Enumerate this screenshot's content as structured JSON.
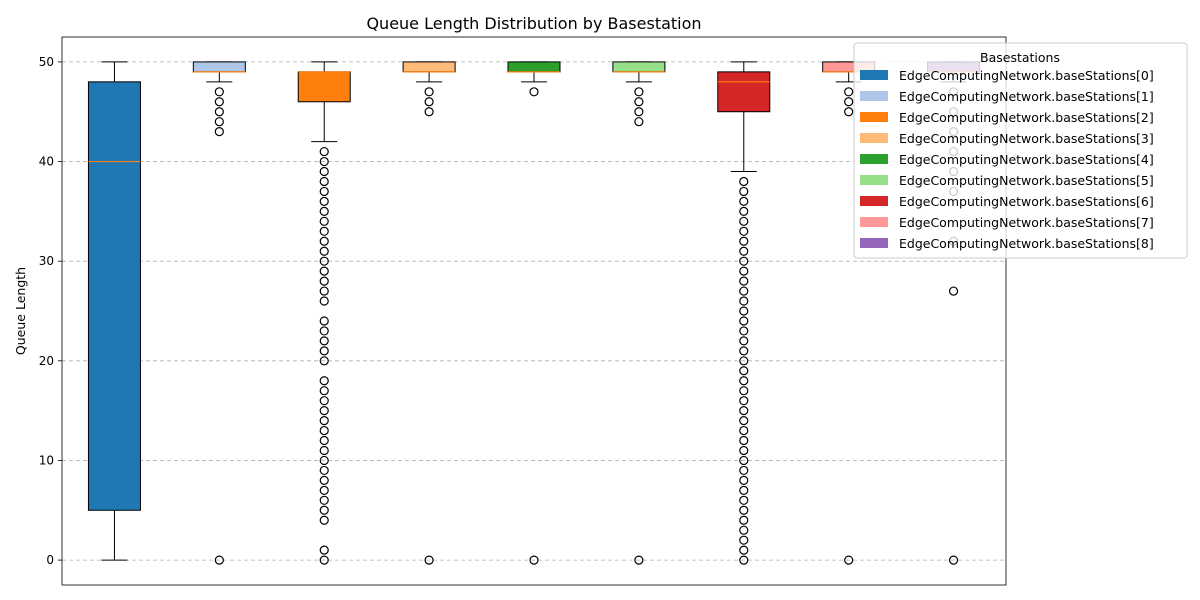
{
  "chart_data": {
    "type": "box",
    "title": "Queue Length Distribution by Basestation",
    "xlabel": "",
    "ylabel": "Queue Length",
    "ylim": [
      -2.5,
      52.5
    ],
    "yticks": [
      0,
      10,
      20,
      30,
      40,
      50
    ],
    "grid": "y-dashed",
    "legend": {
      "title": "Basestations",
      "placement": "top-right"
    },
    "series": [
      {
        "name": "EdgeComputingNetwork.baseStations[0]",
        "color": "#1f77b4",
        "whislo": 0,
        "q1": 5,
        "med": 40,
        "q3": 48,
        "whishi": 50,
        "fliers": []
      },
      {
        "name": "EdgeComputingNetwork.baseStations[1]",
        "color": "#aec7e8",
        "whislo": 48,
        "q1": 49,
        "med": 49,
        "q3": 50,
        "whishi": 50,
        "fliers": [
          47,
          46,
          45,
          44,
          43,
          0
        ]
      },
      {
        "name": "EdgeComputingNetwork.baseStations[2]",
        "color": "#ff7f0e",
        "whislo": 42,
        "q1": 46,
        "med": 49,
        "q3": 49,
        "whishi": 50,
        "fliers": [
          41,
          40,
          39,
          38,
          37,
          36,
          35,
          34,
          33,
          32,
          31,
          30,
          29,
          28,
          27,
          26,
          24,
          23,
          22,
          21,
          20,
          18,
          17,
          16,
          15,
          14,
          13,
          12,
          11,
          10,
          9,
          8,
          7,
          6,
          5,
          4,
          1,
          0
        ]
      },
      {
        "name": "EdgeComputingNetwork.baseStations[3]",
        "color": "#ffbb78",
        "whislo": 48,
        "q1": 49,
        "med": 49,
        "q3": 50,
        "whishi": 50,
        "fliers": [
          47,
          46,
          45,
          0
        ]
      },
      {
        "name": "EdgeComputingNetwork.baseStations[4]",
        "color": "#2ca02c",
        "whislo": 48,
        "q1": 49,
        "med": 49,
        "q3": 50,
        "whishi": 50,
        "fliers": [
          47,
          0
        ]
      },
      {
        "name": "EdgeComputingNetwork.baseStations[5]",
        "color": "#98df8a",
        "whislo": 48,
        "q1": 49,
        "med": 49,
        "q3": 50,
        "whishi": 50,
        "fliers": [
          47,
          46,
          45,
          44,
          0
        ]
      },
      {
        "name": "EdgeComputingNetwork.baseStations[6]",
        "color": "#d62728",
        "whislo": 39,
        "q1": 45,
        "med": 48,
        "q3": 49,
        "whishi": 50,
        "fliers": [
          38,
          37,
          36,
          35,
          34,
          33,
          32,
          31,
          30,
          29,
          28,
          27,
          26,
          25,
          24,
          23,
          22,
          21,
          20,
          19,
          18,
          17,
          16,
          15,
          14,
          13,
          12,
          11,
          10,
          9,
          8,
          7,
          6,
          5,
          4,
          3,
          2,
          1,
          0
        ]
      },
      {
        "name": "EdgeComputingNetwork.baseStations[7]",
        "color": "#ff9896",
        "whislo": 48,
        "q1": 49,
        "med": 49,
        "q3": 50,
        "whishi": 50,
        "fliers": [
          47,
          46,
          45,
          0
        ]
      },
      {
        "name": "EdgeComputingNetwork.baseStations[8]",
        "color": "#9467bd",
        "whislo": 48,
        "q1": 49,
        "med": 49,
        "q3": 50,
        "whishi": 50,
        "fliers": [
          47,
          45,
          43,
          41,
          39,
          37,
          32,
          27,
          0
        ]
      }
    ]
  }
}
